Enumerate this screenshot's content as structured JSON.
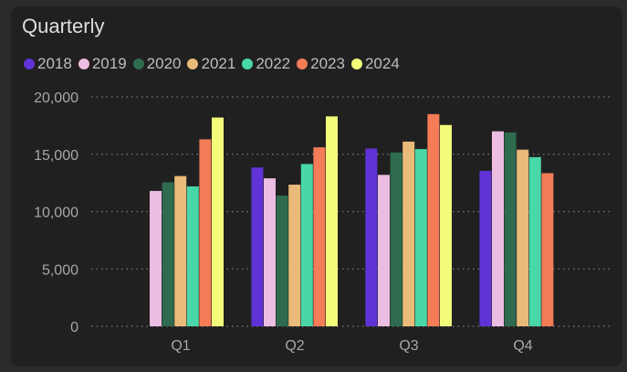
{
  "chart_data": {
    "type": "bar",
    "title": "Quarterly",
    "categories": [
      "Q1",
      "Q2",
      "Q3",
      "Q4"
    ],
    "series": [
      {
        "name": "2018",
        "color": "#5f33d6",
        "values": [
          null,
          13850,
          15500,
          13550
        ]
      },
      {
        "name": "2019",
        "color": "#ecbde3",
        "values": [
          11800,
          12900,
          13200,
          17000
        ]
      },
      {
        "name": "2020",
        "color": "#2f6b4e",
        "values": [
          12550,
          11400,
          15150,
          16900
        ]
      },
      {
        "name": "2021",
        "color": "#e9ba79",
        "values": [
          13100,
          12350,
          16100,
          15400
        ]
      },
      {
        "name": "2022",
        "color": "#49d6a8",
        "values": [
          12200,
          14150,
          15450,
          14750
        ]
      },
      {
        "name": "2023",
        "color": "#f47c57",
        "values": [
          16300,
          15600,
          18500,
          13350
        ]
      },
      {
        "name": "2024",
        "color": "#f3fb7a",
        "values": [
          18200,
          18300,
          17550,
          null
        ]
      }
    ],
    "ylim": [
      0,
      20000
    ],
    "yticks": [
      "0",
      "5,000",
      "10,000",
      "15,000",
      "20,000"
    ],
    "ytick_values": [
      0,
      5000,
      10000,
      15000,
      20000
    ],
    "grid": true,
    "legend": "top-left",
    "xlabel": "",
    "ylabel": ""
  }
}
